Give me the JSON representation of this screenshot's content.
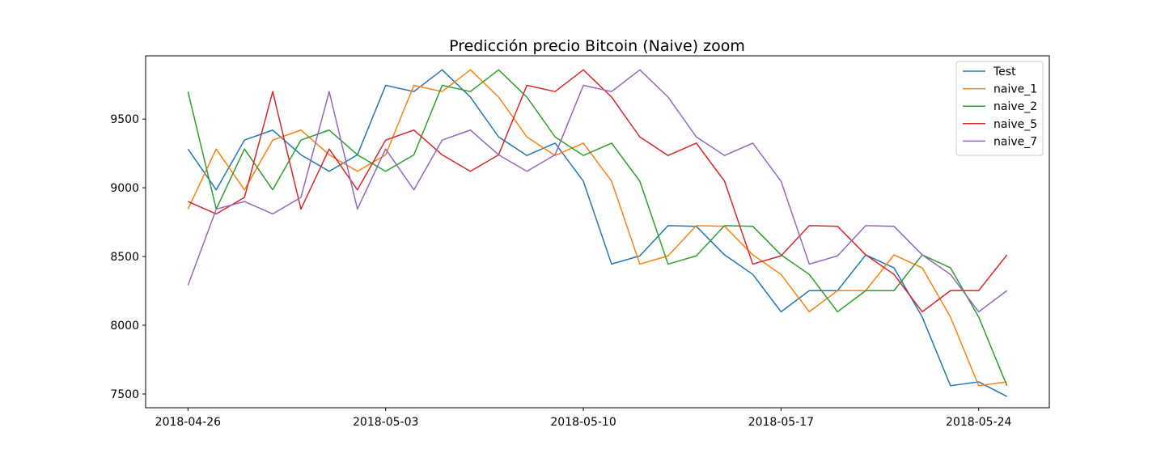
{
  "chart_data": {
    "type": "line",
    "title": "Predicción precio Bitcoin (Naive) zoom",
    "xlabel": "",
    "ylabel": "",
    "x_start_date": "2018-04-26",
    "x_count": 30,
    "xlim_days": [
      -1.5,
      30.5
    ],
    "ylim": [
      7400,
      9960
    ],
    "yticks": [
      7500,
      8000,
      8500,
      9000,
      9500
    ],
    "xticks": [
      {
        "day": 0,
        "label": "2018-04-26"
      },
      {
        "day": 7,
        "label": "2018-05-03"
      },
      {
        "day": 14,
        "label": "2018-05-10"
      },
      {
        "day": 21,
        "label": "2018-05-17"
      },
      {
        "day": 28,
        "label": "2018-05-24"
      }
    ],
    "grid": false,
    "legend_position": "top-right",
    "series": [
      {
        "name": "Test",
        "color": "#1f77b4",
        "values": [
          9282,
          8985,
          9347,
          9420,
          9240,
          9120,
          9240,
          9745,
          9700,
          9858,
          9660,
          9370,
          9235,
          9325,
          9048,
          8445,
          8505,
          8725,
          8720,
          8512,
          8370,
          8098,
          8252,
          8252,
          8512,
          8418,
          8060,
          7560,
          7588,
          7482
        ]
      },
      {
        "name": "naive_1",
        "color": "#ff7f0e",
        "values": [
          8845,
          9282,
          8985,
          9347,
          9420,
          9240,
          9120,
          9240,
          9745,
          9700,
          9858,
          9660,
          9370,
          9235,
          9325,
          9048,
          8445,
          8505,
          8725,
          8720,
          8512,
          8370,
          8098,
          8252,
          8252,
          8512,
          8418,
          8060,
          7560,
          7588
        ]
      },
      {
        "name": "naive_2",
        "color": "#2ca02c",
        "values": [
          9700,
          8845,
          9282,
          8985,
          9347,
          9420,
          9240,
          9120,
          9240,
          9745,
          9700,
          9858,
          9660,
          9370,
          9235,
          9325,
          9048,
          8445,
          8505,
          8725,
          8720,
          8512,
          8370,
          8098,
          8252,
          8252,
          8512,
          8418,
          8060,
          7560
        ]
      },
      {
        "name": "naive_5",
        "color": "#d62728",
        "values": [
          8900,
          8810,
          8930,
          9700,
          8845,
          9282,
          8985,
          9347,
          9420,
          9240,
          9120,
          9240,
          9745,
          9700,
          9858,
          9660,
          9370,
          9235,
          9325,
          9048,
          8445,
          8505,
          8725,
          8720,
          8512,
          8370,
          8098,
          8252,
          8252,
          8512
        ]
      },
      {
        "name": "naive_7",
        "color": "#9467bd",
        "values": [
          8290,
          8845,
          8900,
          8810,
          8930,
          9700,
          8845,
          9282,
          8985,
          9347,
          9420,
          9240,
          9120,
          9240,
          9745,
          9700,
          9858,
          9660,
          9370,
          9235,
          9325,
          9048,
          8445,
          8505,
          8725,
          8720,
          8512,
          8370,
          8098,
          8252
        ]
      }
    ]
  }
}
